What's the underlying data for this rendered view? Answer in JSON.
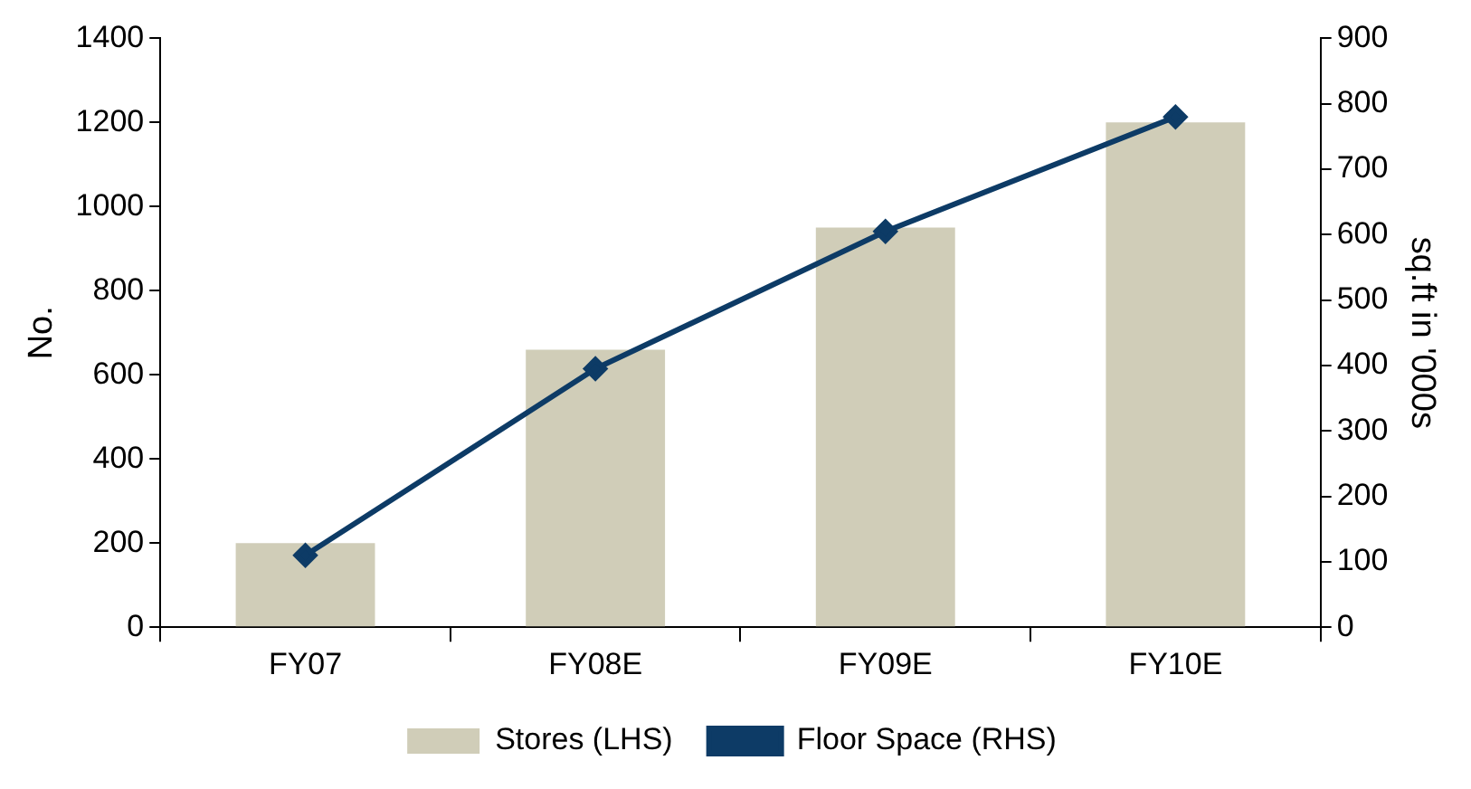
{
  "chart_data": {
    "type": "bar",
    "ylabel": "No.",
    "y2label": "sq.ft in '000s",
    "categories": [
      "FY07",
      "FY08E",
      "FY09E",
      "FY10E"
    ],
    "series": [
      {
        "name": "Stores (LHS)",
        "color": "#d0cdb8",
        "values": [
          200,
          660,
          950,
          1200
        ]
      },
      {
        "name": "Floor Space (RHS)",
        "type": "line",
        "axis": "y2",
        "color": "#0d3b66",
        "values": [
          110,
          395,
          605,
          780
        ]
      }
    ],
    "ylim": [
      0,
      1400
    ],
    "yticks": [
      0,
      200,
      400,
      600,
      800,
      1000,
      1200,
      1400
    ],
    "y2lim": [
      0,
      900
    ],
    "y2ticks": [
      0,
      100,
      200,
      300,
      400,
      500,
      600,
      700,
      800,
      900
    ],
    "grid": false,
    "legend": "bottom",
    "marker": "diamond",
    "line_style": "solid"
  }
}
